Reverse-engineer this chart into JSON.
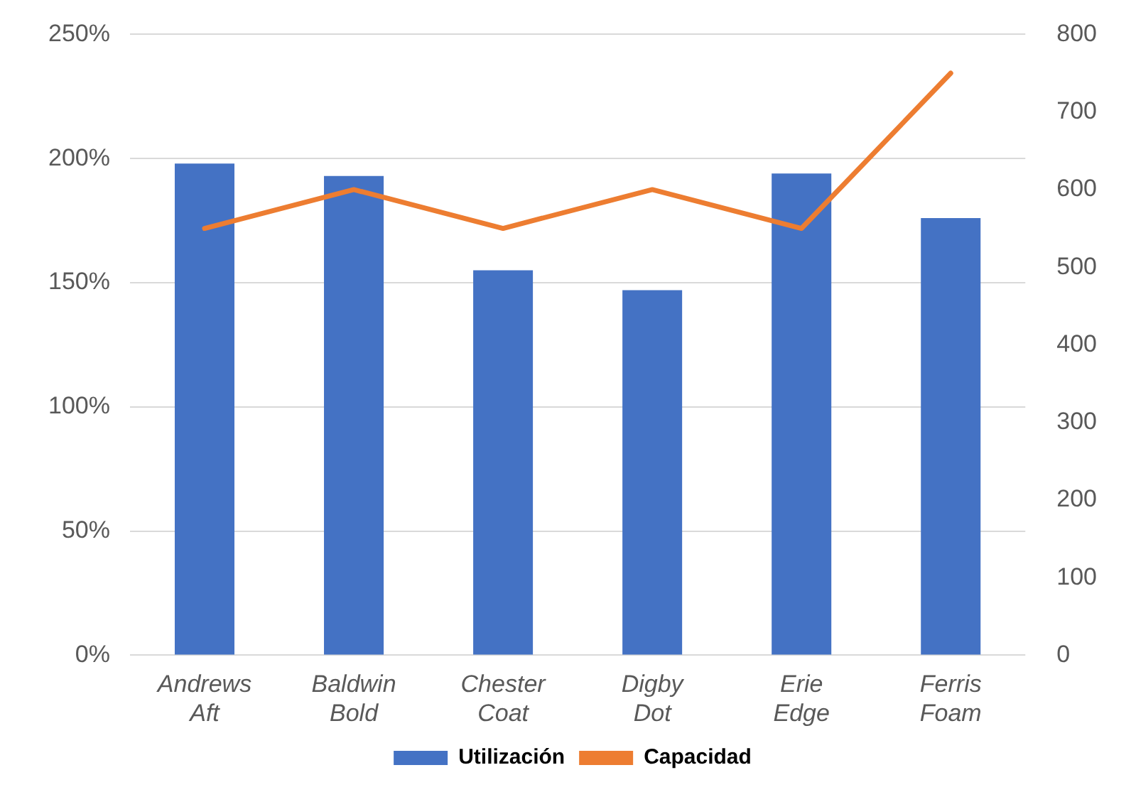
{
  "chart_data": {
    "type": "bar",
    "categories": [
      "Andrews Aft",
      "Baldwin Bold",
      "Chester Coat",
      "Digby Dot",
      "Erie Edge",
      "Ferris Foam"
    ],
    "series": [
      {
        "name": "Utilización",
        "color": "#4472c4",
        "values": [
          198,
          193,
          155,
          147,
          194,
          176
        ]
      },
      {
        "name": "Capacidad",
        "type": "line",
        "axis": "y2",
        "color": "#ed7d31",
        "values": [
          550,
          600,
          550,
          600,
          550,
          750
        ]
      }
    ],
    "ylim": [
      0,
      250
    ],
    "yticks": [
      {
        "value": 0,
        "label": "0%"
      },
      {
        "value": 50,
        "label": "50%"
      },
      {
        "value": 100,
        "label": "100%"
      },
      {
        "value": 150,
        "label": "150%"
      },
      {
        "value": 200,
        "label": "200%"
      },
      {
        "value": 250,
        "label": "250%"
      }
    ],
    "y2lim": [
      0,
      800
    ],
    "y2ticks": [
      0,
      100,
      200,
      300,
      400,
      500,
      600,
      700,
      800
    ],
    "grid": "y",
    "legend": "bottom",
    "marker": "none"
  }
}
